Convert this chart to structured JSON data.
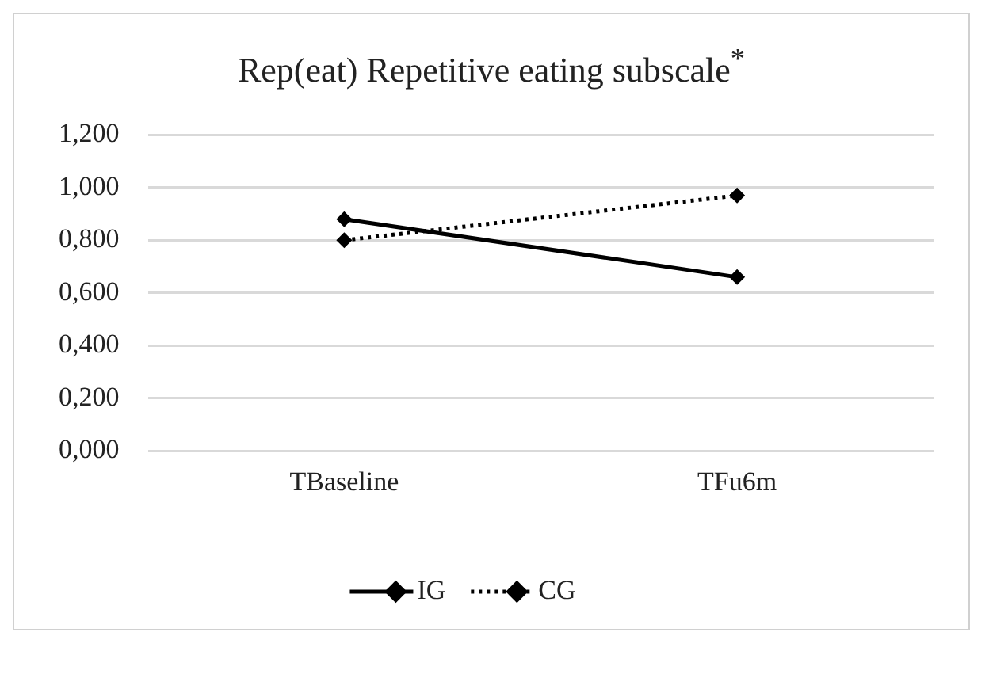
{
  "chart_data": {
    "type": "line",
    "title": "Rep(eat) Repetitive eating subscale$^{*}$",
    "categories": [
      "TBaseline",
      "TFu6m"
    ],
    "series": [
      {
        "name": "IG",
        "color": "#000000",
        "values": [
          0.88,
          0.66
        ],
        "line_style": "solid"
      },
      {
        "name": "CG",
        "color": "#000000",
        "values": [
          0.8,
          0.97
        ],
        "line_style": "dotted"
      }
    ],
    "ylim": [
      0,
      1.2
    ],
    "yticks": [
      {
        "value": 0,
        "label": "0,000"
      },
      {
        "value": 0.2,
        "label": "0,200"
      },
      {
        "value": 0.4,
        "label": "0,400"
      },
      {
        "value": 0.6,
        "label": "0,600"
      },
      {
        "value": 0.8,
        "label": "0,800"
      },
      {
        "value": 1,
        "label": "1,000"
      },
      {
        "value": 1.2,
        "label": "1,200"
      }
    ],
    "grid": "y",
    "legend": "bottom",
    "marker": "diamond"
  }
}
